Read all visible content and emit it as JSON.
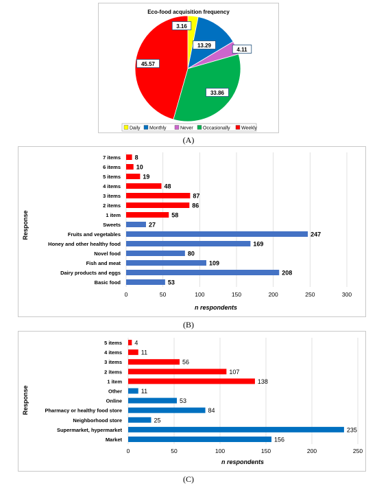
{
  "captions": {
    "a": "(A)",
    "b": "(B)",
    "c": "(C)"
  },
  "colors": {
    "daily": "#ffff00",
    "monthly": "#0070c0",
    "never": "#cc66cc",
    "occasionally": "#00b050",
    "weekly": "#ff0000",
    "red_bar": "#ff0000",
    "blue_bar": "#4472c4",
    "blue_bar_c": "#0070c0",
    "grid": "#d9d9d9"
  },
  "chart_data": [
    {
      "type": "pie",
      "title": "Eco-food acquisition frequency",
      "slices": [
        {
          "label": "Daily",
          "value": 3.16,
          "value_label": "3.16",
          "color_key": "daily"
        },
        {
          "label": "Monthly",
          "value": 13.29,
          "value_label": "13.29",
          "color_key": "monthly"
        },
        {
          "label": "Never",
          "value": 4.11,
          "value_label": "4.11",
          "color_key": "never"
        },
        {
          "label": "Occasionally",
          "value": 33.86,
          "value_label": "33.86",
          "color_key": "occasionally"
        },
        {
          "label": "Weekly",
          "value": 45.57,
          "value_label": "45.57",
          "color_key": "weekly"
        }
      ],
      "legend": [
        "Daily",
        "Monthly",
        "Never",
        "Occasionally",
        "Weekly"
      ],
      "legend_position": "bottom"
    },
    {
      "type": "bar",
      "orientation": "horizontal",
      "xlabel": "n respondents",
      "ylabel": "Response",
      "xlim": [
        0,
        300
      ],
      "xticks": [
        "0",
        "50",
        "100",
        "150",
        "200",
        "250",
        "300"
      ],
      "grid": true,
      "categories": [
        "7 items",
        "6 items",
        "5 items",
        "4 items",
        "3 items",
        "2 items",
        "1 item",
        "Sweets",
        "Fruits and vegetables",
        "Honey and other healthy food",
        "Novel food",
        "Fish and meat",
        "Dairy products and eggs",
        "Basic food"
      ],
      "values": [
        8,
        10,
        19,
        48,
        87,
        86,
        58,
        27,
        247,
        169,
        80,
        109,
        208,
        53
      ],
      "value_labels": [
        "8",
        "10",
        "19",
        "48",
        "87",
        "86",
        "58",
        "27",
        "247",
        "169",
        "80",
        "109",
        "208",
        "53"
      ],
      "color_groups": [
        "red",
        "red",
        "red",
        "red",
        "red",
        "red",
        "red",
        "blue",
        "blue",
        "blue",
        "blue",
        "blue",
        "blue",
        "blue"
      ]
    },
    {
      "type": "bar",
      "orientation": "horizontal",
      "xlabel": "n respondents",
      "ylabel": "Response",
      "xlim": [
        0,
        250
      ],
      "xticks": [
        "0",
        "50",
        "100",
        "150",
        "200",
        "250"
      ],
      "grid": true,
      "categories": [
        "5 items",
        "4 items",
        "3 items",
        "2 items",
        "1 item",
        "Other",
        "Online",
        "Pharmacy or healthy food store",
        "Neighborhood store",
        "Supermarket, hypermarket",
        "Market"
      ],
      "values": [
        4,
        11,
        56,
        107,
        138,
        11,
        53,
        84,
        25,
        235,
        156
      ],
      "value_labels": [
        "4",
        "11",
        "56",
        "107",
        "138",
        "11",
        "53",
        "84",
        "25",
        "235",
        "156"
      ],
      "color_groups": [
        "red",
        "red",
        "red",
        "red",
        "red",
        "blue",
        "blue",
        "blue",
        "blue",
        "blue",
        "blue"
      ]
    }
  ]
}
